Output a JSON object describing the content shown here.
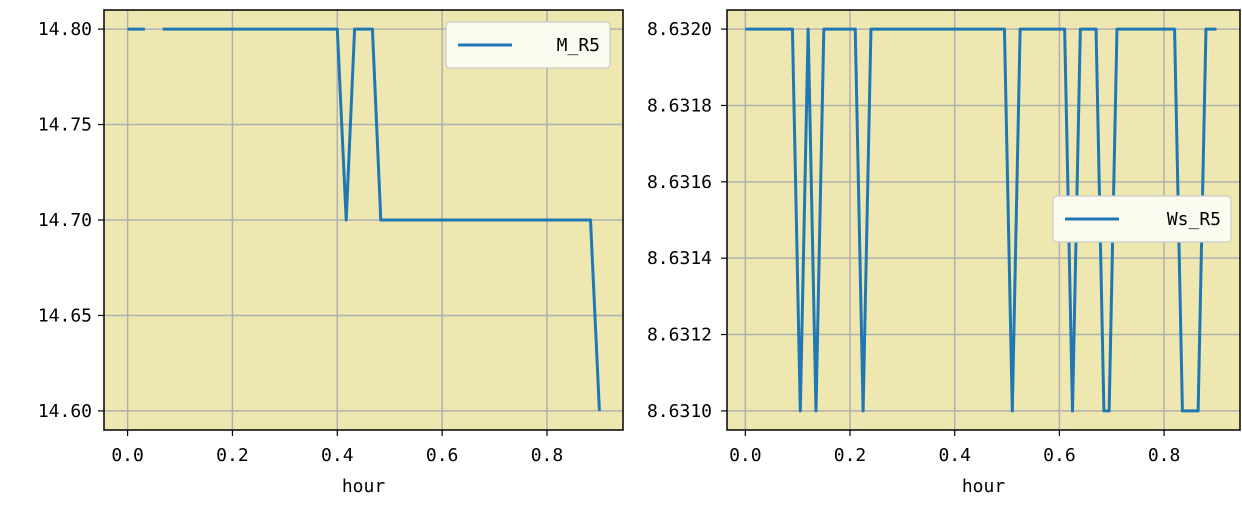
{
  "style": {
    "plot_background": "#eee8b0",
    "line_color": "#1f77b4",
    "grid_color": "#b0b0b0",
    "legend_background": "#fcfbf0"
  },
  "chart_data": [
    {
      "type": "line",
      "xlabel": "hour",
      "ylabel": "",
      "xlim": [
        -0.045,
        0.945
      ],
      "ylim": [
        14.59,
        14.81
      ],
      "xticks": [
        0.0,
        0.2,
        0.4,
        0.6,
        0.8
      ],
      "xtick_labels": [
        "0.0",
        "0.2",
        "0.4",
        "0.6",
        "0.8"
      ],
      "yticks": [
        14.6,
        14.65,
        14.7,
        14.75,
        14.8
      ],
      "ytick_labels": [
        "14.60",
        "14.65",
        "14.70",
        "14.75",
        "14.80"
      ],
      "grid": true,
      "legend_position": "upper right",
      "series": [
        {
          "name": "M_R5",
          "segments": [
            {
              "x": [
                0.0,
                0.033
              ],
              "y": [
                14.8,
                14.8
              ]
            },
            {
              "x": [
                0.067,
                0.4,
                0.417,
                0.433,
                0.467,
                0.483,
                0.883,
                0.9
              ],
              "y": [
                14.8,
                14.8,
                14.7,
                14.8,
                14.8,
                14.7,
                14.7,
                14.6
              ]
            }
          ]
        }
      ]
    },
    {
      "type": "line",
      "xlabel": "hour",
      "ylabel": "",
      "xlim": [
        -0.035,
        0.945
      ],
      "ylim": [
        8.63095,
        8.63205
      ],
      "xticks": [
        0.0,
        0.2,
        0.4,
        0.6,
        0.8
      ],
      "xtick_labels": [
        "0.0",
        "0.2",
        "0.4",
        "0.6",
        "0.8"
      ],
      "yticks": [
        8.631,
        8.6312,
        8.6314,
        8.6316,
        8.6318,
        8.632
      ],
      "ytick_labels": [
        "8.6310",
        "8.6312",
        "8.6314",
        "8.6316",
        "8.6318",
        "8.6320"
      ],
      "grid": true,
      "legend_position": "center right",
      "series": [
        {
          "name": "Ws_R5",
          "segments": [
            {
              "x": [
                0.0,
                0.09,
                0.105,
                0.12,
                0.135,
                0.15,
                0.165,
                0.21,
                0.225,
                0.24,
                0.495,
                0.51,
                0.525,
                0.61,
                0.625,
                0.64,
                0.67,
                0.685,
                0.695,
                0.71,
                0.725,
                0.82,
                0.835,
                0.865,
                0.88,
                0.9
              ],
              "y": [
                8.632,
                8.632,
                8.631,
                8.632,
                8.631,
                8.632,
                8.632,
                8.632,
                8.631,
                8.632,
                8.632,
                8.631,
                8.632,
                8.632,
                8.631,
                8.632,
                8.632,
                8.631,
                8.631,
                8.632,
                8.632,
                8.632,
                8.631,
                8.631,
                8.632,
                8.632
              ]
            }
          ]
        }
      ]
    }
  ]
}
